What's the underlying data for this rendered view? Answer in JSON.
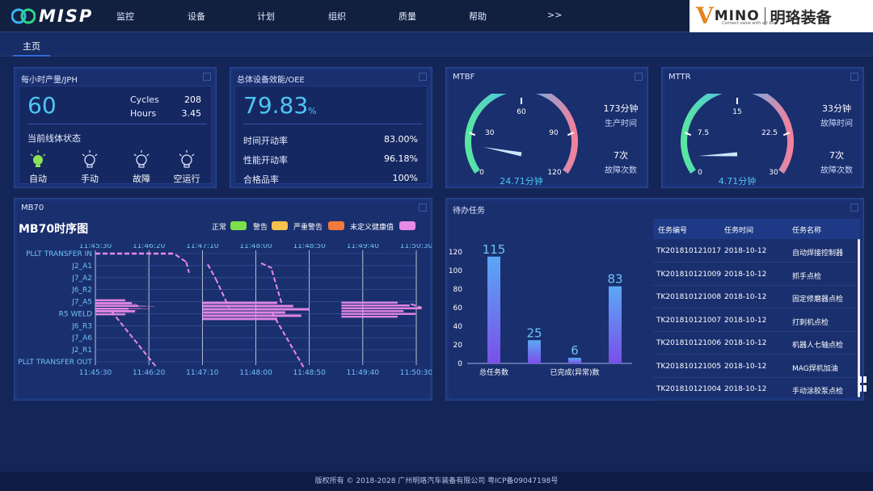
{
  "nav": {
    "logo_text": "MISP",
    "items": [
      "监控",
      "设备",
      "计划",
      "组织",
      "质量",
      "帮助",
      ">>"
    ],
    "brand_letter": "V",
    "brand_name": "MINO",
    "brand_tagline": "Connect value with art boot",
    "brand_cn": "明珞装备"
  },
  "tabs": {
    "home": "主页"
  },
  "jph": {
    "title": "每小时产量/JPH",
    "value": "60",
    "cycles_label": "Cycles",
    "cycles_value": "208",
    "hours_label": "Hours",
    "hours_value": "3.45",
    "status_title": "当前线体状态",
    "states": [
      {
        "label": "自动",
        "active": true
      },
      {
        "label": "手动",
        "active": false
      },
      {
        "label": "故障",
        "active": false
      },
      {
        "label": "空运行",
        "active": false
      }
    ]
  },
  "oee": {
    "title": "总体设备效能/OEE",
    "value": "79.83",
    "unit": "%",
    "rows": [
      {
        "label": "时间开动率",
        "value": "83.00%"
      },
      {
        "label": "性能开动率",
        "value": "96.18%"
      },
      {
        "label": "合格品率",
        "value": "100%"
      }
    ]
  },
  "mtbf": {
    "title": "MTBF",
    "ticks": [
      "0",
      "30",
      "60",
      "90",
      "120"
    ],
    "gauge_max": 120,
    "gauge_value": 24.71,
    "readout": "24.71分钟",
    "stat1_value": "173分钟",
    "stat1_label": "生产时间",
    "stat2_value": "7次",
    "stat2_label": "故障次数"
  },
  "mttr": {
    "title": "MTTR",
    "ticks": [
      "0",
      "7.5",
      "15",
      "22.5",
      "30"
    ],
    "gauge_max": 30,
    "gauge_value": 4.71,
    "readout": "4.71分钟",
    "stat1_value": "33分钟",
    "stat1_label": "故障时间",
    "stat2_value": "7次",
    "stat2_label": "故障次数"
  },
  "mb70": {
    "panel_title": "MB70",
    "chart_title": "MB70时序图",
    "legend": [
      {
        "label": "正常",
        "color": "#7ce04a"
      },
      {
        "label": "警告",
        "color": "#f4c04e"
      },
      {
        "label": "严重警告",
        "color": "#f27a3c"
      },
      {
        "label": "未定义健康值",
        "color": "#e98ae8"
      }
    ]
  },
  "tasks_panel": {
    "title": "待办任务"
  },
  "chart_data": [
    {
      "type": "timeline",
      "title": "MB70时序图",
      "x_ticks": [
        "11:45:30",
        "11:46:20",
        "11:47:10",
        "11:48:00",
        "11:48:50",
        "11:49:40",
        "11:50:30"
      ],
      "y_categories": [
        "PLLT TRANSFER IN",
        "J2_A1",
        "J7_A2",
        "J6_R2",
        "J7_A5",
        "R5 WELD",
        "J6_R3",
        "J7_A6",
        "J2_R1",
        "PLLT TRANSFER OUT"
      ],
      "series": [
        {
          "name": "未定义健康值",
          "color": "#e98ae8"
        }
      ]
    },
    {
      "type": "bar",
      "categories": [
        "总任务数",
        "",
        "已完成(异常)数",
        ""
      ],
      "values": [
        115,
        25,
        6,
        83
      ],
      "ylim": [
        0,
        120
      ],
      "yticks": [
        0,
        20,
        40,
        60,
        80,
        100,
        120
      ]
    },
    {
      "type": "table",
      "columns": [
        "任务编号",
        "任务时间",
        "任务名称"
      ],
      "rows": [
        [
          "TK201810121017",
          "2018-10-12",
          "自动焊接控制器"
        ],
        [
          "TK201810121009",
          "2018-10-12",
          "抓手点检"
        ],
        [
          "TK201810121008",
          "2018-10-12",
          "固定修磨器点检"
        ],
        [
          "TK201810121007",
          "2018-10-12",
          "打刺机点检"
        ],
        [
          "TK201810121006",
          "2018-10-12",
          "机器人七轴点检"
        ],
        [
          "TK201810121005",
          "2018-10-12",
          "MAG焊机加油"
        ],
        [
          "TK201810121004",
          "2018-10-12",
          "手动涂胶泵点检"
        ]
      ]
    }
  ],
  "footer": {
    "text": "版权所有 © 2018-2028 广州明珞汽车装备有限公司 粤ICP备09047198号"
  }
}
